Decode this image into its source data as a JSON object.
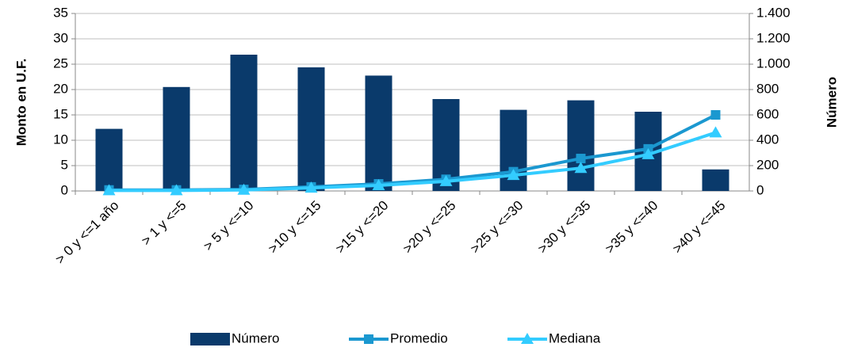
{
  "chart_data": {
    "type": "bar_line",
    "ylabel": "Monto en U.F.",
    "y2label": "Número",
    "categories": [
      "> 0 y <=1 año",
      "> 1 y <=5",
      "> 5 y <=10",
      ">10 y <=15",
      ">15 y <=20",
      ">20 y <=25",
      ">25 y <=30",
      ">30 y <=35",
      ">35 y <=40",
      ">40 y <=45"
    ],
    "series": [
      {
        "name": "Número",
        "type": "bar",
        "axis": "y2",
        "color": "#0a3a6b",
        "values": [
          490,
          820,
          1075,
          975,
          910,
          725,
          640,
          715,
          625,
          170
        ]
      },
      {
        "name": "Promedio",
        "type": "line",
        "marker": "square",
        "color": "#1b98d0",
        "values": [
          0.2,
          0.2,
          0.3,
          0.8,
          1.4,
          2.3,
          3.8,
          6.4,
          8.3,
          15
        ]
      },
      {
        "name": "Mediana",
        "type": "line",
        "marker": "triangle",
        "color": "#33ccff",
        "values": [
          0.1,
          0.1,
          0.2,
          0.6,
          1.1,
          1.9,
          3.1,
          4.5,
          7.2,
          11.5
        ]
      }
    ],
    "ylim": [
      0,
      35
    ],
    "yticks": [
      0,
      5,
      10,
      15,
      20,
      25,
      30,
      35
    ],
    "y2lim": [
      0,
      1400
    ],
    "y2ticks": [
      0,
      200,
      400,
      600,
      800,
      {
        "value": 1000,
        "label": "1.000"
      },
      {
        "value": 1200,
        "label": "1.200"
      },
      {
        "value": 1400,
        "label": "1.400"
      }
    ],
    "grid": true,
    "legend": "bottom"
  }
}
